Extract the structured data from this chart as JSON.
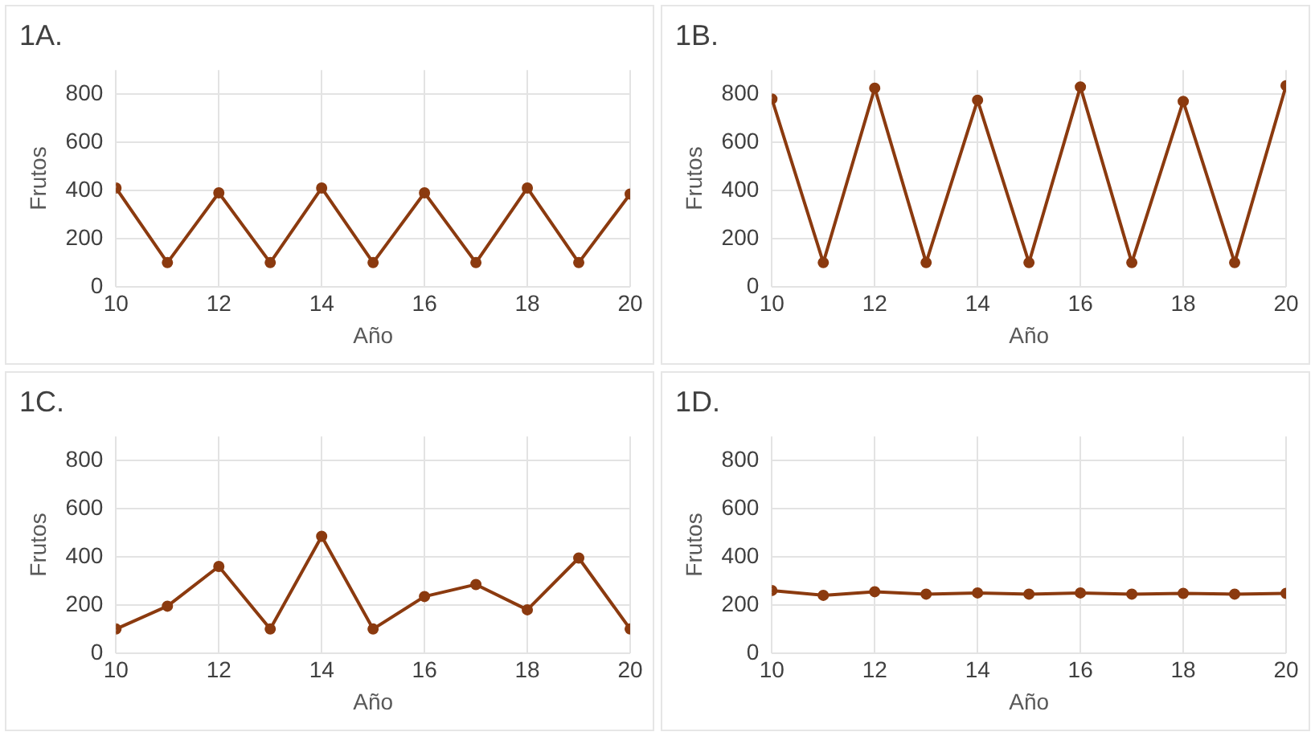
{
  "chart_data": [
    {
      "type": "line",
      "title": "1A.",
      "xlabel": "Año",
      "ylabel": "Frutos",
      "x": [
        10,
        11,
        12,
        13,
        14,
        15,
        16,
        17,
        18,
        19,
        20
      ],
      "xlim": [
        10,
        20
      ],
      "xticks": [
        10,
        12,
        14,
        16,
        18,
        20
      ],
      "ylim": [
        0,
        900
      ],
      "yticks": [
        0,
        200,
        400,
        600,
        800
      ],
      "grid": true,
      "marker": "circle",
      "series": [
        {
          "color": "#8b3a0f",
          "values": [
            410,
            100,
            390,
            100,
            410,
            100,
            390,
            100,
            410,
            100,
            385
          ]
        }
      ]
    },
    {
      "type": "line",
      "title": "1B.",
      "xlabel": "Año",
      "ylabel": "Frutos",
      "x": [
        10,
        11,
        12,
        13,
        14,
        15,
        16,
        17,
        18,
        19,
        20
      ],
      "xlim": [
        10,
        20
      ],
      "xticks": [
        10,
        12,
        14,
        16,
        18,
        20
      ],
      "ylim": [
        0,
        900
      ],
      "yticks": [
        0,
        200,
        400,
        600,
        800
      ],
      "grid": true,
      "marker": "circle",
      "series": [
        {
          "color": "#8b3a0f",
          "values": [
            780,
            100,
            825,
            100,
            775,
            100,
            830,
            100,
            770,
            100,
            835
          ]
        }
      ]
    },
    {
      "type": "line",
      "title": "1C.",
      "xlabel": "Año",
      "ylabel": "Frutos",
      "x": [
        10,
        11,
        12,
        13,
        14,
        15,
        16,
        17,
        18,
        19,
        20
      ],
      "xlim": [
        10,
        20
      ],
      "xticks": [
        10,
        12,
        14,
        16,
        18,
        20
      ],
      "ylim": [
        0,
        900
      ],
      "yticks": [
        0,
        200,
        400,
        600,
        800
      ],
      "grid": true,
      "marker": "circle",
      "series": [
        {
          "color": "#8b3a0f",
          "values": [
            100,
            195,
            360,
            100,
            485,
            100,
            235,
            285,
            180,
            395,
            100
          ]
        }
      ]
    },
    {
      "type": "line",
      "title": "1D.",
      "xlabel": "Año",
      "ylabel": "Frutos",
      "x": [
        10,
        11,
        12,
        13,
        14,
        15,
        16,
        17,
        18,
        19,
        20
      ],
      "xlim": [
        10,
        20
      ],
      "xticks": [
        10,
        12,
        14,
        16,
        18,
        20
      ],
      "ylim": [
        0,
        900
      ],
      "yticks": [
        0,
        200,
        400,
        600,
        800
      ],
      "grid": true,
      "marker": "circle",
      "series": [
        {
          "color": "#8b3a0f",
          "values": [
            260,
            240,
            255,
            245,
            250,
            245,
            250,
            245,
            248,
            245,
            248
          ]
        }
      ]
    }
  ]
}
